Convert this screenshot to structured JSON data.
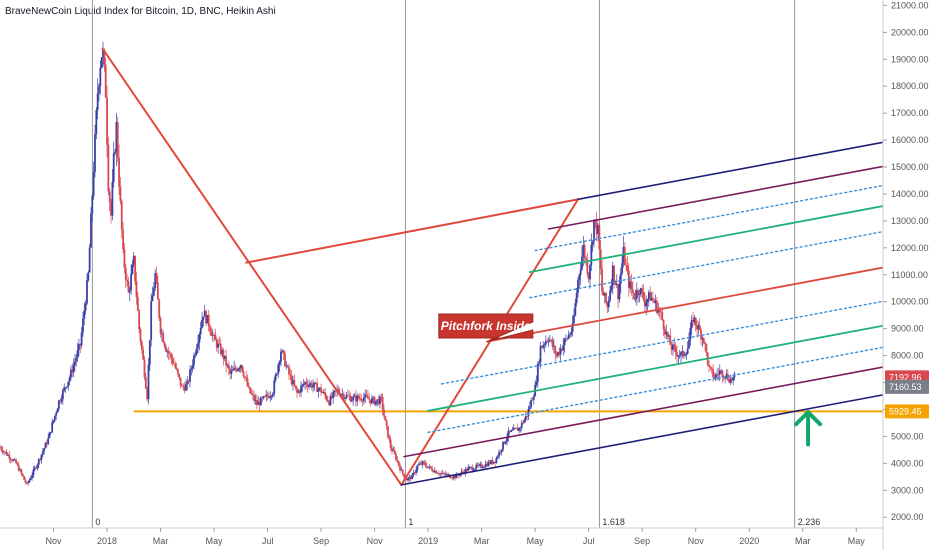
{
  "header": {
    "title": "BraveNewCoin Liquid Index for Bitcoin, 1D, BNC, Heikin Ashi"
  },
  "colors": {
    "candle_up": "#3a3fa8",
    "candle_down": "#d9484f",
    "support": "#f5a300",
    "pitchfork_outer": "#1f1f7a",
    "pitchfork_warning": "#7b1b5e",
    "pitchfork_median": "#e0493c",
    "pitchfork_inner": "#1fb27a",
    "pitchfork_dotted": "#3a8fd8",
    "callout": "#c8352f",
    "arrow": "#12a86a"
  },
  "chart_data": {
    "type": "line",
    "scale": "linear",
    "ylim": [
      1600,
      21200
    ],
    "yticks": [
      "2000.00",
      "3000.00",
      "4000.00",
      "5000.00",
      "6000.00",
      "7000.00",
      "8000.00",
      "9000.00",
      "10000.00",
      "11000.00",
      "12000.00",
      "13000.00",
      "14000.00",
      "15000.00",
      "16000.00",
      "17000.00",
      "18000.00",
      "19000.00",
      "20000.00",
      "21000.00"
    ],
    "xticks": [
      {
        "label": "Nov",
        "t": 2.0
      },
      {
        "label": "2018",
        "t": 4.0
      },
      {
        "label": "Mar",
        "t": 6.0
      },
      {
        "label": "May",
        "t": 8.0
      },
      {
        "label": "Jul",
        "t": 10.0
      },
      {
        "label": "Sep",
        "t": 12.0
      },
      {
        "label": "Nov",
        "t": 14.0
      },
      {
        "label": "2019",
        "t": 16.0
      },
      {
        "label": "Mar",
        "t": 18.0
      },
      {
        "label": "May",
        "t": 20.0
      },
      {
        "label": "Jul",
        "t": 22.0
      },
      {
        "label": "Sep",
        "t": 24.0
      },
      {
        "label": "Nov",
        "t": 26.0
      },
      {
        "label": "2020",
        "t": 28.0
      },
      {
        "label": "Mar",
        "t": 30.0
      },
      {
        "label": "May",
        "t": 32.0
      }
    ],
    "price_path": [
      [
        0.0,
        4600
      ],
      [
        0.6,
        4000
      ],
      [
        1.0,
        3200
      ],
      [
        1.4,
        4000
      ],
      [
        1.8,
        4900
      ],
      [
        2.2,
        6300
      ],
      [
        2.6,
        7200
      ],
      [
        3.0,
        8400
      ],
      [
        3.3,
        11000
      ],
      [
        3.5,
        15000
      ],
      [
        3.65,
        17800
      ],
      [
        3.75,
        18900
      ],
      [
        3.83,
        19400
      ],
      [
        3.95,
        17800
      ],
      [
        4.05,
        14400
      ],
      [
        4.15,
        13200
      ],
      [
        4.25,
        15200
      ],
      [
        4.35,
        16500
      ],
      [
        4.45,
        14500
      ],
      [
        4.6,
        11700
      ],
      [
        4.8,
        10300
      ],
      [
        5.0,
        11500
      ],
      [
        5.2,
        9000
      ],
      [
        5.35,
        7800
      ],
      [
        5.5,
        6500
      ],
      [
        5.65,
        9800
      ],
      [
        5.8,
        11000
      ],
      [
        6.0,
        9000
      ],
      [
        6.2,
        8300
      ],
      [
        6.5,
        7700
      ],
      [
        6.8,
        6800
      ],
      [
        7.0,
        6900
      ],
      [
        7.3,
        8200
      ],
      [
        7.6,
        9600
      ],
      [
        7.8,
        9200
      ],
      [
        8.0,
        8600
      ],
      [
        8.3,
        8100
      ],
      [
        8.6,
        7300
      ],
      [
        9.0,
        7700
      ],
      [
        9.3,
        6700
      ],
      [
        9.6,
        6200
      ],
      [
        9.9,
        6400
      ],
      [
        10.2,
        6700
      ],
      [
        10.5,
        8200
      ],
      [
        10.8,
        7300
      ],
      [
        11.1,
        6600
      ],
      [
        11.4,
        7000
      ],
      [
        11.7,
        6900
      ],
      [
        12.0,
        6700
      ],
      [
        12.3,
        6300
      ],
      [
        12.6,
        6700
      ],
      [
        12.9,
        6500
      ],
      [
        13.2,
        6400
      ],
      [
        13.6,
        6450
      ],
      [
        14.0,
        6300
      ],
      [
        14.25,
        6350
      ],
      [
        14.4,
        5500
      ],
      [
        14.6,
        4600
      ],
      [
        14.8,
        4200
      ],
      [
        15.0,
        3700
      ],
      [
        15.2,
        3400
      ],
      [
        15.4,
        3500
      ],
      [
        15.6,
        3900
      ],
      [
        15.8,
        4000
      ],
      [
        16.1,
        3800
      ],
      [
        16.5,
        3600
      ],
      [
        17.0,
        3500
      ],
      [
        17.5,
        3800
      ],
      [
        18.0,
        3900
      ],
      [
        18.5,
        4100
      ],
      [
        19.0,
        5100
      ],
      [
        19.4,
        5300
      ],
      [
        19.7,
        5800
      ],
      [
        20.0,
        6800
      ],
      [
        20.2,
        8300
      ],
      [
        20.5,
        8700
      ],
      [
        20.8,
        8000
      ],
      [
        21.1,
        8500
      ],
      [
        21.4,
        9000
      ],
      [
        21.6,
        10800
      ],
      [
        21.8,
        12000
      ],
      [
        22.0,
        11000
      ],
      [
        22.2,
        13000
      ],
      [
        22.35,
        12600
      ],
      [
        22.5,
        10400
      ],
      [
        22.7,
        9800
      ],
      [
        22.9,
        11200
      ],
      [
        23.1,
        10300
      ],
      [
        23.3,
        11800
      ],
      [
        23.5,
        10700
      ],
      [
        23.7,
        10200
      ],
      [
        23.9,
        10500
      ],
      [
        24.1,
        10000
      ],
      [
        24.3,
        10200
      ],
      [
        24.5,
        9900
      ],
      [
        24.7,
        9500
      ],
      [
        24.9,
        8800
      ],
      [
        25.1,
        8300
      ],
      [
        25.3,
        8100
      ],
      [
        25.5,
        8000
      ],
      [
        25.7,
        8300
      ],
      [
        25.9,
        9400
      ],
      [
        26.1,
        9000
      ],
      [
        26.3,
        8600
      ],
      [
        26.5,
        7500
      ],
      [
        26.7,
        7200
      ],
      [
        26.9,
        7400
      ],
      [
        27.1,
        7300
      ],
      [
        27.3,
        7100
      ],
      [
        27.5,
        7200
      ]
    ],
    "pitchfork": {
      "pivot_a": [
        15.0,
        3200
      ],
      "pivot_b": [
        21.6,
        13800
      ],
      "pivot_c": [
        3.83,
        19400
      ],
      "median_start": [
        9.2,
        11450
      ],
      "median_end": [
        33.0,
        12200
      ],
      "median_reference": {
        "from": [
          21.6,
          13800
        ],
        "to": [
          9.2,
          11450
        ]
      }
    },
    "trend_lines": [
      {
        "name": "median-1",
        "from": [
          9.2,
          11500
        ],
        "to": [
          33.0,
          11200
        ]
      },
      {
        "name": "median-2",
        "from": [
          17.5,
          8500
        ],
        "to": [
          33.0,
          11200
        ]
      }
    ],
    "support_level": {
      "value": 5929.45,
      "from_t": 5.0
    },
    "fib_markers": [
      {
        "label": "0",
        "t": 3.45
      },
      {
        "label": "1",
        "t": 15.15
      },
      {
        "label": "1.618",
        "t": 22.4
      },
      {
        "label": "2.236",
        "t": 29.7
      }
    ],
    "price_tags": [
      {
        "label": "7192.96",
        "value": 7192.96,
        "color": "#d9484f"
      },
      {
        "label": "7160.53",
        "value": 6840,
        "color": "#7a7f87"
      },
      {
        "label": "5929.45",
        "value": 5929.45,
        "color": "#f5a300"
      }
    ],
    "callout": {
      "label": "Pitchfork Inside",
      "t": 16.4,
      "value": 9100,
      "anchor_t": 18.2,
      "anchor_value": 8520
    },
    "arrow_up": {
      "t": 30.2,
      "from_value": 4700,
      "to_value": 5900
    }
  }
}
